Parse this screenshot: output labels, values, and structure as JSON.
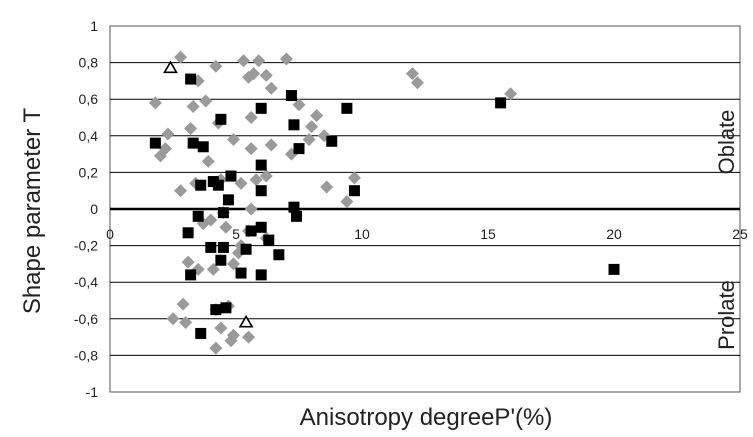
{
  "chart_data": {
    "type": "scatter",
    "title": "",
    "xlabel": "Anisotropy degreeP'(%)",
    "ylabel": "Shape parameter T",
    "xlim": [
      0,
      25
    ],
    "ylim": [
      -1,
      1
    ],
    "x_ticks": [
      0,
      5,
      10,
      15,
      20,
      25
    ],
    "y_ticks": [
      -1,
      -0.8,
      -0.6,
      -0.4,
      -0.2,
      0,
      0.2,
      0.4,
      0.6,
      0.8,
      1
    ],
    "x_tick_labels": [
      "0",
      "5",
      "10",
      "15",
      "20",
      "25"
    ],
    "y_tick_labels": [
      "-1",
      "-0,8",
      "-0,6",
      "-0,4",
      "-0,2",
      "0",
      "0,2",
      "0,4",
      "0,6",
      "0,8",
      "1"
    ],
    "grid": "horizontal",
    "legend": "none",
    "annotations": [
      {
        "text": "Oblate",
        "region": "upper-right"
      },
      {
        "text": "Prolate",
        "region": "lower-right"
      }
    ],
    "series": [
      {
        "marker": "diamond",
        "color": "#9a9a9a",
        "points": [
          [
            2.8,
            0.83
          ],
          [
            4.2,
            0.78
          ],
          [
            5.3,
            0.81
          ],
          [
            5.9,
            0.81
          ],
          [
            7.0,
            0.82
          ],
          [
            5.5,
            0.72
          ],
          [
            5.7,
            0.74
          ],
          [
            6.2,
            0.73
          ],
          [
            3.5,
            0.7
          ],
          [
            1.8,
            0.58
          ],
          [
            3.8,
            0.59
          ],
          [
            3.3,
            0.56
          ],
          [
            6.4,
            0.66
          ],
          [
            4.3,
            0.47
          ],
          [
            5.6,
            0.5
          ],
          [
            7.5,
            0.57
          ],
          [
            3.2,
            0.44
          ],
          [
            2.3,
            0.41
          ],
          [
            4.9,
            0.38
          ],
          [
            5.6,
            0.33
          ],
          [
            6.4,
            0.35
          ],
          [
            8.2,
            0.51
          ],
          [
            8.0,
            0.45
          ],
          [
            7.9,
            0.38
          ],
          [
            8.5,
            0.4
          ],
          [
            2.2,
            0.33
          ],
          [
            2.0,
            0.29
          ],
          [
            3.9,
            0.26
          ],
          [
            2.8,
            0.1
          ],
          [
            3.4,
            0.14
          ],
          [
            4.4,
            0.16
          ],
          [
            5.8,
            0.16
          ],
          [
            5.2,
            0.14
          ],
          [
            6.2,
            0.18
          ],
          [
            7.2,
            0.3
          ],
          [
            8.6,
            0.12
          ],
          [
            9.7,
            0.17
          ],
          [
            9.4,
            0.04
          ],
          [
            5.6,
            0.0
          ],
          [
            4.5,
            -0.02
          ],
          [
            4.0,
            -0.06
          ],
          [
            3.7,
            -0.08
          ],
          [
            4.6,
            -0.1
          ],
          [
            5.5,
            -0.12
          ],
          [
            6.2,
            -0.16
          ],
          [
            5.2,
            -0.2
          ],
          [
            3.1,
            -0.29
          ],
          [
            3.5,
            -0.33
          ],
          [
            4.1,
            -0.33
          ],
          [
            4.9,
            -0.3
          ],
          [
            5.1,
            -0.24
          ],
          [
            2.9,
            -0.52
          ],
          [
            4.2,
            -0.55
          ],
          [
            4.7,
            -0.53
          ],
          [
            2.5,
            -0.6
          ],
          [
            3.0,
            -0.62
          ],
          [
            4.4,
            -0.65
          ],
          [
            4.9,
            -0.69
          ],
          [
            5.5,
            -0.7
          ],
          [
            4.8,
            -0.72
          ],
          [
            4.2,
            -0.76
          ],
          [
            12.0,
            0.74
          ],
          [
            12.2,
            0.69
          ],
          [
            15.9,
            0.63
          ]
        ]
      },
      {
        "marker": "square",
        "color": "#000000",
        "points": [
          [
            3.2,
            0.71
          ],
          [
            1.8,
            0.36
          ],
          [
            3.3,
            0.36
          ],
          [
            3.7,
            0.34
          ],
          [
            4.4,
            0.49
          ],
          [
            6.0,
            0.55
          ],
          [
            7.2,
            0.62
          ],
          [
            7.3,
            0.46
          ],
          [
            7.5,
            0.33
          ],
          [
            8.8,
            0.37
          ],
          [
            9.4,
            0.55
          ],
          [
            6.0,
            0.24
          ],
          [
            4.8,
            0.18
          ],
          [
            4.1,
            0.15
          ],
          [
            4.3,
            0.13
          ],
          [
            3.6,
            0.13
          ],
          [
            4.7,
            0.05
          ],
          [
            6.0,
            0.1
          ],
          [
            4.5,
            -0.02
          ],
          [
            3.5,
            -0.04
          ],
          [
            7.3,
            0.01
          ],
          [
            7.4,
            -0.04
          ],
          [
            9.7,
            0.1
          ],
          [
            6.0,
            -0.1
          ],
          [
            5.6,
            -0.12
          ],
          [
            6.3,
            -0.17
          ],
          [
            3.1,
            -0.13
          ],
          [
            4.0,
            -0.21
          ],
          [
            4.5,
            -0.21
          ],
          [
            5.4,
            -0.22
          ],
          [
            6.7,
            -0.25
          ],
          [
            3.2,
            -0.36
          ],
          [
            4.4,
            -0.28
          ],
          [
            5.2,
            -0.35
          ],
          [
            6.0,
            -0.36
          ],
          [
            4.2,
            -0.55
          ],
          [
            4.6,
            -0.54
          ],
          [
            3.6,
            -0.68
          ],
          [
            15.5,
            0.58
          ],
          [
            20.0,
            -0.33
          ]
        ]
      },
      {
        "marker": "triangle-open",
        "color": "#000000",
        "points": [
          [
            2.4,
            0.77
          ],
          [
            5.4,
            -0.62
          ]
        ]
      }
    ]
  }
}
